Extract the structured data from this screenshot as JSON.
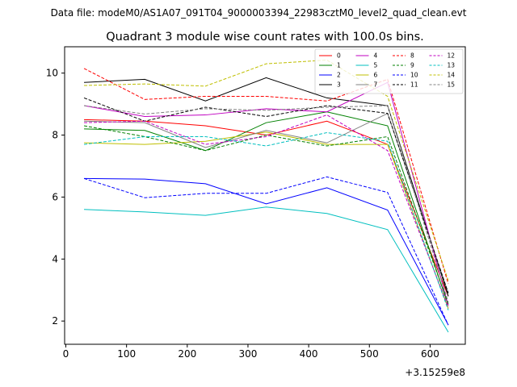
{
  "figure": {
    "suptitle": "Data file: modeM0/AS1A07_091T04_9000003394_22983cztM0_level2_quad_clean.evt",
    "offset_label": "+3.15259e8"
  },
  "chart_data": {
    "type": "line",
    "title": "Quadrant 3 module wise count rates with 100.0s bins.",
    "xlabel": "",
    "ylabel": "",
    "xlim": [
      -2,
      658
    ],
    "ylim": [
      1.25,
      10.85
    ],
    "x_offset": "+3.15259e8",
    "x_ticks": [
      0,
      100,
      200,
      300,
      400,
      500,
      600
    ],
    "y_ticks": [
      2,
      4,
      6,
      8,
      10
    ],
    "x": [
      30,
      130,
      230,
      330,
      430,
      530,
      630
    ],
    "legend_position": "top-right",
    "series": [
      {
        "name": "0",
        "color": "#ff0000",
        "dash": "solid",
        "values": [
          8.5,
          8.45,
          8.3,
          8.0,
          8.45,
          7.7,
          2.8
        ]
      },
      {
        "name": "1",
        "color": "#008000",
        "dash": "solid",
        "values": [
          8.2,
          8.15,
          7.5,
          8.4,
          8.75,
          8.3,
          2.5
        ]
      },
      {
        "name": "2",
        "color": "#0000ff",
        "dash": "solid",
        "values": [
          6.6,
          6.58,
          6.43,
          5.78,
          6.3,
          5.58,
          1.87
        ]
      },
      {
        "name": "3",
        "color": "#000000",
        "dash": "solid",
        "values": [
          9.7,
          9.8,
          9.1,
          9.85,
          9.2,
          8.95,
          2.8
        ]
      },
      {
        "name": "4",
        "color": "#c000c0",
        "dash": "solid",
        "values": [
          8.95,
          8.6,
          8.65,
          8.85,
          8.75,
          9.7,
          2.5
        ]
      },
      {
        "name": "5",
        "color": "#00bfbf",
        "dash": "solid",
        "values": [
          5.6,
          5.52,
          5.41,
          5.68,
          5.47,
          4.95,
          1.64
        ]
      },
      {
        "name": "6",
        "color": "#bfbf00",
        "dash": "solid",
        "values": [
          7.75,
          7.7,
          7.8,
          8.1,
          7.7,
          7.7,
          2.4
        ]
      },
      {
        "name": "7",
        "color": "#808080",
        "dash": "solid",
        "values": [
          8.45,
          8.4,
          7.6,
          8.15,
          7.75,
          8.7,
          2.9
        ]
      },
      {
        "name": "8",
        "color": "#ff0000",
        "dash": "dashed",
        "values": [
          10.15,
          9.15,
          9.25,
          9.25,
          9.1,
          9.8,
          3.2
        ]
      },
      {
        "name": "9",
        "color": "#008000",
        "dash": "dashed",
        "values": [
          8.3,
          7.95,
          7.5,
          8.0,
          7.65,
          7.95,
          2.55
        ]
      },
      {
        "name": "10",
        "color": "#0000ff",
        "dash": "dashed",
        "values": [
          6.6,
          5.98,
          6.12,
          6.12,
          6.65,
          6.15,
          1.87
        ]
      },
      {
        "name": "11",
        "color": "#000000",
        "dash": "dashed",
        "values": [
          9.2,
          8.45,
          8.9,
          8.6,
          8.95,
          8.7,
          2.9
        ]
      },
      {
        "name": "12",
        "color": "#c000c0",
        "dash": "dashed",
        "values": [
          8.4,
          8.45,
          7.7,
          7.95,
          8.65,
          7.5,
          2.45
        ]
      },
      {
        "name": "13",
        "color": "#00bfbf",
        "dash": "dashed",
        "values": [
          7.7,
          7.95,
          7.95,
          7.65,
          8.08,
          7.8,
          2.35
        ]
      },
      {
        "name": "14",
        "color": "#bfbf00",
        "dash": "dashed",
        "values": [
          9.6,
          9.65,
          9.58,
          10.3,
          10.42,
          9.25,
          3.3
        ]
      },
      {
        "name": "15",
        "color": "#808080",
        "dash": "dashed",
        "values": [
          8.95,
          8.68,
          8.85,
          8.8,
          8.9,
          8.95,
          2.6
        ]
      }
    ]
  }
}
